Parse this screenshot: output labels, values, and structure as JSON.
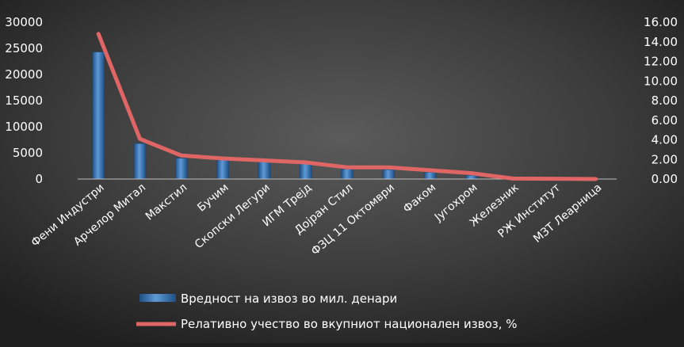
{
  "chart_data": {
    "type": "bar",
    "title": "",
    "xlabel": "",
    "ylabel": "",
    "categories": [
      "Фени Индустри",
      "Арчелор Митал",
      "Макстил",
      "Бучим",
      "Скопски Легури",
      "ИГМ Трејд",
      "Дојран Стил",
      "ФЗЦ 11 Октомври",
      "Факом",
      "Југохром",
      "Железник",
      "РЖ Институт",
      "МЗТ Леарница"
    ],
    "series": [
      {
        "name": "Вредност на извоз во мил. денари",
        "type": "bar",
        "axis": "left",
        "color": "#2f6fae",
        "values": [
          24300,
          6800,
          4000,
          3600,
          3300,
          2900,
          1900,
          1800,
          1300,
          700,
          0,
          0,
          0
        ]
      },
      {
        "name": "Релативно учество во вкупниот национален извоз, %",
        "type": "line",
        "axis": "right",
        "color": "#e06666",
        "values": [
          14.8,
          4.1,
          2.4,
          2.1,
          1.9,
          1.7,
          1.2,
          1.2,
          0.9,
          0.6,
          0.05,
          0.03,
          0.0
        ]
      }
    ],
    "y_left": {
      "min": 0,
      "max": 30000,
      "ticks": [
        "0",
        "5000",
        "10000",
        "15000",
        "20000",
        "25000",
        "30000"
      ]
    },
    "y_right": {
      "min": 0,
      "max": 16,
      "ticks": [
        "0.00",
        "2.00",
        "4.00",
        "6.00",
        "8.00",
        "10.00",
        "12.00",
        "14.00",
        "16.00"
      ]
    },
    "grid": false,
    "legend_position": "bottom"
  }
}
